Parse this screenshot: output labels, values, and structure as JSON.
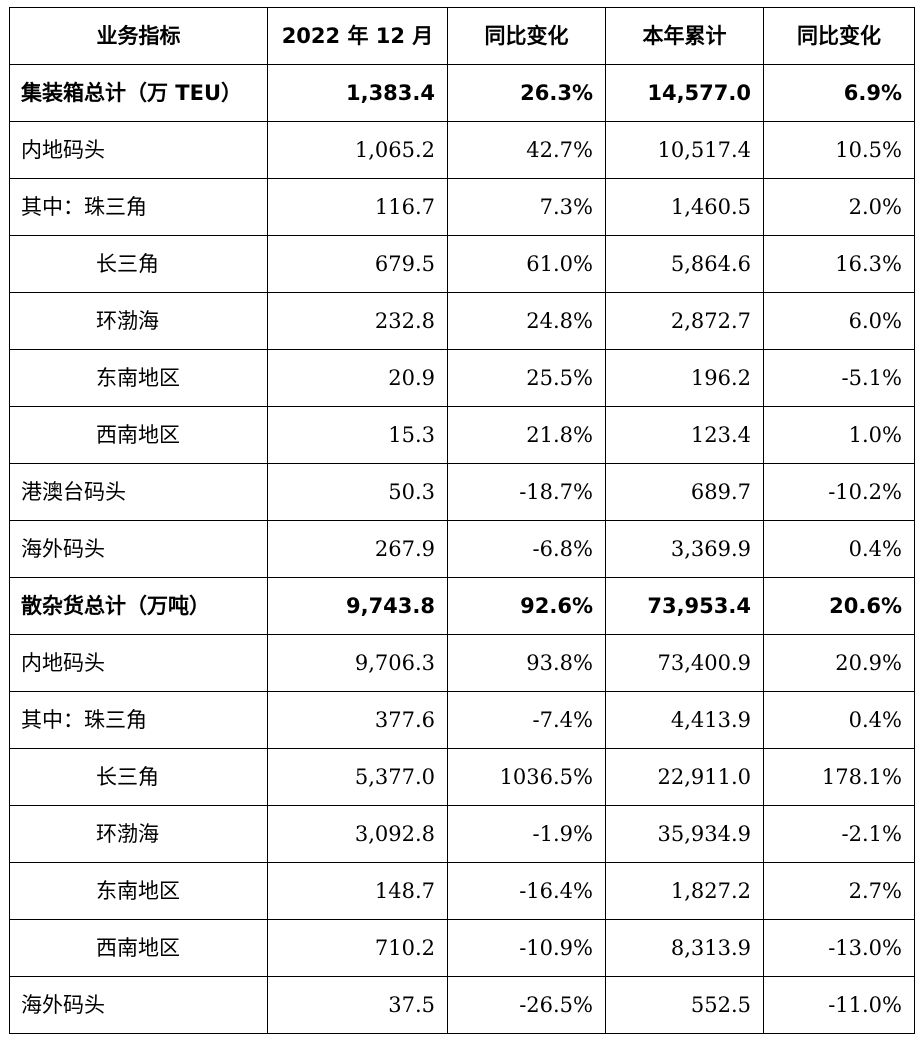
{
  "headers": [
    "业务指标",
    "2022 年 12 月",
    "同比变化",
    "本年累计",
    "同比变化"
  ],
  "rows": [
    {
      "label": "集装箱总计（万 TEU）",
      "month": "1,383.4",
      "yoy_month": "26.3%",
      "ytd": "14,577.0",
      "yoy_ytd": "6.9%",
      "type": "total"
    },
    {
      "label": "内地码头",
      "month": "1,065.2",
      "yoy_month": "42.7%",
      "ytd": "10,517.4",
      "yoy_ytd": "10.5%",
      "type": "normal"
    },
    {
      "label": "其中：珠三角",
      "month": "116.7",
      "yoy_month": "7.3%",
      "ytd": "1,460.5",
      "yoy_ytd": "2.0%",
      "type": "normal"
    },
    {
      "label": "长三角",
      "month": "679.5",
      "yoy_month": "61.0%",
      "ytd": "5,864.6",
      "yoy_ytd": "16.3%",
      "type": "indent"
    },
    {
      "label": "环渤海",
      "month": "232.8",
      "yoy_month": "24.8%",
      "ytd": "2,872.7",
      "yoy_ytd": "6.0%",
      "type": "indent"
    },
    {
      "label": "东南地区",
      "month": "20.9",
      "yoy_month": "25.5%",
      "ytd": "196.2",
      "yoy_ytd": "-5.1%",
      "type": "indent"
    },
    {
      "label": "西南地区",
      "month": "15.3",
      "yoy_month": "21.8%",
      "ytd": "123.4",
      "yoy_ytd": "1.0%",
      "type": "indent"
    },
    {
      "label": "港澳台码头",
      "month": "50.3",
      "yoy_month": "-18.7%",
      "ytd": "689.7",
      "yoy_ytd": "-10.2%",
      "type": "normal"
    },
    {
      "label": "海外码头",
      "month": "267.9",
      "yoy_month": "-6.8%",
      "ytd": "3,369.9",
      "yoy_ytd": "0.4%",
      "type": "normal"
    },
    {
      "label": "散杂货总计（万吨）",
      "month": "9,743.8",
      "yoy_month": "92.6%",
      "ytd": "73,953.4",
      "yoy_ytd": "20.6%",
      "type": "total"
    },
    {
      "label": "内地码头",
      "month": "9,706.3",
      "yoy_month": "93.8%",
      "ytd": "73,400.9",
      "yoy_ytd": "20.9%",
      "type": "normal"
    },
    {
      "label": "其中：珠三角",
      "month": "377.6",
      "yoy_month": "-7.4%",
      "ytd": "4,413.9",
      "yoy_ytd": "0.4%",
      "type": "normal"
    },
    {
      "label": "长三角",
      "month": "5,377.0",
      "yoy_month": "1036.5%",
      "ytd": "22,911.0",
      "yoy_ytd": "178.1%",
      "type": "indent"
    },
    {
      "label": "环渤海",
      "month": "3,092.8",
      "yoy_month": "-1.9%",
      "ytd": "35,934.9",
      "yoy_ytd": "-2.1%",
      "type": "indent"
    },
    {
      "label": "东南地区",
      "month": "148.7",
      "yoy_month": "-16.4%",
      "ytd": "1,827.2",
      "yoy_ytd": "2.7%",
      "type": "indent"
    },
    {
      "label": "西南地区",
      "month": "710.2",
      "yoy_month": "-10.9%",
      "ytd": "8,313.9",
      "yoy_ytd": "-13.0%",
      "type": "indent"
    },
    {
      "label": "海外码头",
      "month": "37.5",
      "yoy_month": "-26.5%",
      "ytd": "552.5",
      "yoy_ytd": "-11.0%",
      "type": "normal"
    }
  ]
}
